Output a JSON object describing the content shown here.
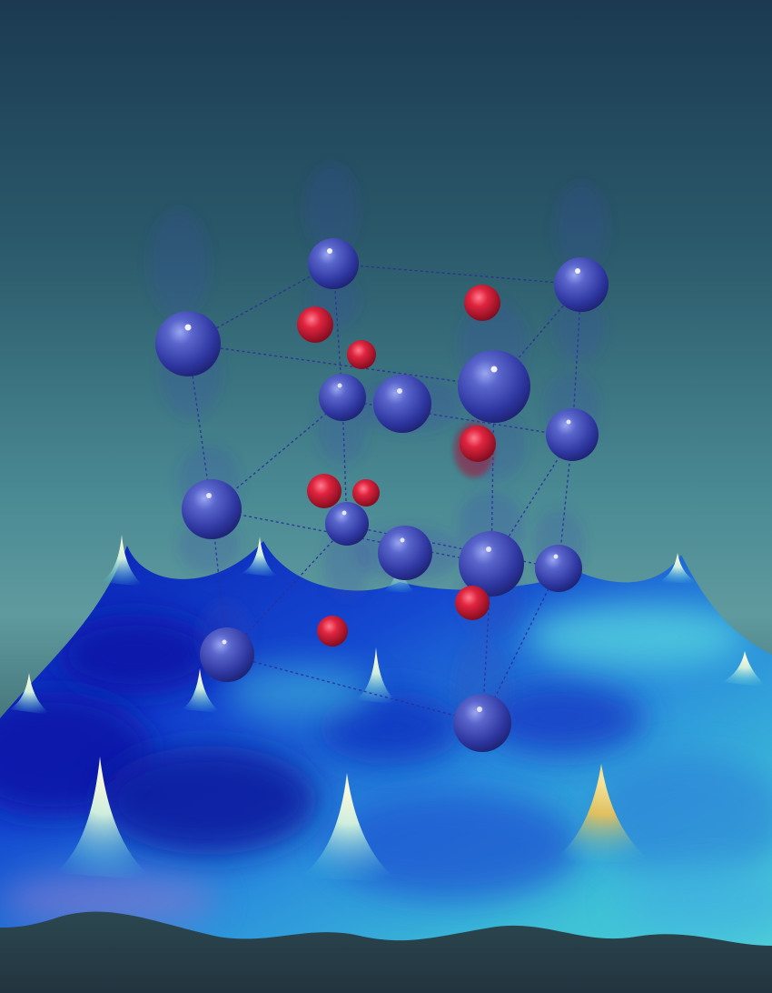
{
  "image": {
    "subject": "crystal-lattice-over-potential-surface",
    "colors": {
      "background_top": "#1b3a52",
      "background_mid": "#3e7f8a",
      "background_low": "#5f9a9e",
      "floor": "#223540",
      "surface_deep": "#0a1fb3",
      "surface_mid": "#1f6fd6",
      "surface_light": "#3fc2d6",
      "surface_peak": "#f3eec0",
      "peak_gold": "#e0c060",
      "atom_blue": "#3b44b0",
      "atom_red": "#d0183a",
      "bond_line": "#2a2f9a"
    }
  }
}
